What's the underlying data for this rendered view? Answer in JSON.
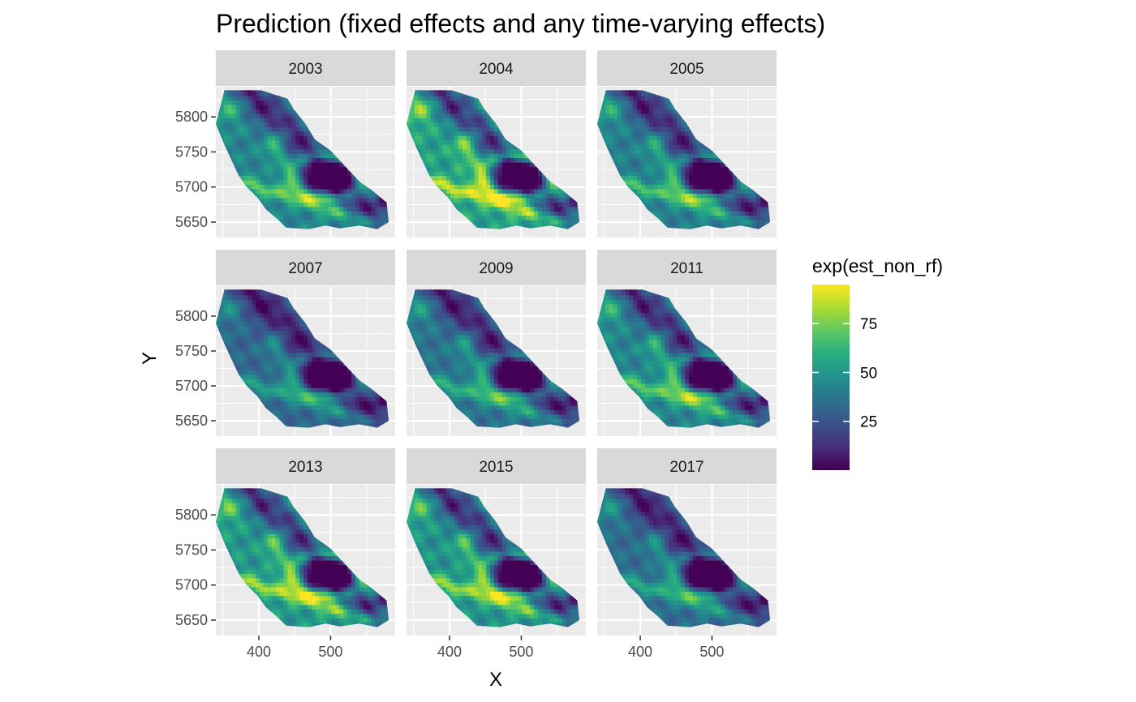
{
  "chart_data": {
    "type": "heatmap",
    "title": "Prediction (fixed effects and any time-varying effects)",
    "xlabel": "X",
    "ylabel": "Y",
    "facets": [
      "2003",
      "2004",
      "2005",
      "2007",
      "2009",
      "2011",
      "2013",
      "2015",
      "2017"
    ],
    "x_ticks": [
      400,
      500
    ],
    "y_ticks": [
      5650,
      5700,
      5750,
      5800
    ],
    "xlim": [
      340,
      590
    ],
    "ylim": [
      5628,
      5843
    ],
    "legend": {
      "title": "exp(est_non_rf)",
      "breaks": [
        25,
        50,
        75
      ],
      "range": [
        0,
        95
      ],
      "colormap": "viridis",
      "placement": "right"
    },
    "facet_intensity": [
      0.55,
      0.8,
      0.5,
      0.3,
      0.4,
      0.55,
      0.72,
      0.68,
      0.35
    ],
    "colors": {
      "panel_bg": "#ebebeb",
      "strip_bg": "#d9d9d9",
      "grid": "#ffffff",
      "viridis": [
        "#440154",
        "#472d7b",
        "#3b528b",
        "#2c728e",
        "#21918c",
        "#28ae80",
        "#5ec962",
        "#addc30",
        "#fde725"
      ]
    }
  }
}
